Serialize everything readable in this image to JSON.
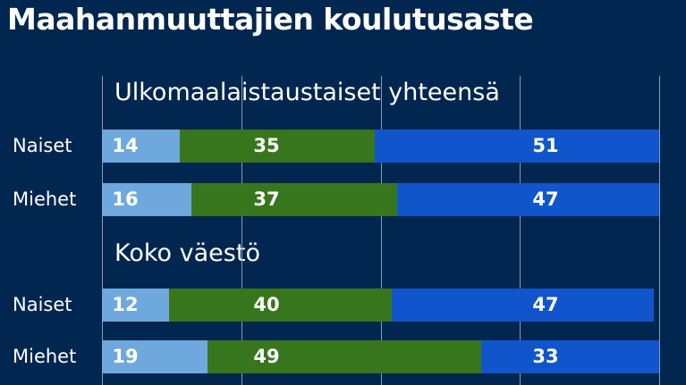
{
  "chart_data": {
    "type": "bar",
    "orientation": "horizontal",
    "stacked": true,
    "title": "Maahanmuuttajien koulutusaste",
    "xlim": [
      0,
      100
    ],
    "grid": true,
    "groups": [
      {
        "label": "Ulkomaalaistaustaiset yhteensä",
        "rows": [
          {
            "category": "Naiset",
            "values": [
              14,
              35,
              51
            ]
          },
          {
            "category": "Miehet",
            "values": [
              16,
              37,
              47
            ]
          }
        ]
      },
      {
        "label": "Koko väestö",
        "rows": [
          {
            "category": "Naiset",
            "values": [
              12,
              40,
              47
            ]
          },
          {
            "category": "Miehet",
            "values": [
              19,
              49,
              33
            ]
          }
        ]
      }
    ],
    "colors": [
      "#6fa8dc",
      "#38761d",
      "#1155cc"
    ],
    "background": "#01264f"
  }
}
